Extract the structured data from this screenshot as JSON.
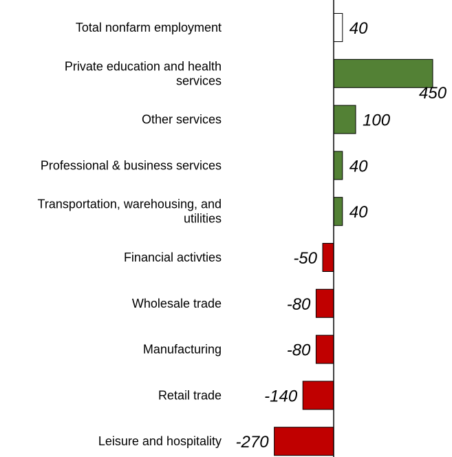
{
  "chart_data": {
    "type": "bar",
    "orientation": "horizontal",
    "title": "",
    "xlabel": "",
    "ylabel": "",
    "categories": [
      "Total nonfarm employment",
      "Private education and health services",
      "Other services",
      "Professional & business services",
      "Transportation, warehousing, and utilities",
      "Financial activties",
      "Wholesale trade",
      "Manufacturing",
      "Retail trade",
      "Leisure and hospitality"
    ],
    "category_lines": [
      [
        "Total nonfarm employment"
      ],
      [
        "Private education and health",
        "services"
      ],
      [
        "Other services"
      ],
      [
        "Professional & business services"
      ],
      [
        "Transportation, warehousing, and",
        "utilities"
      ],
      [
        "Financial activties"
      ],
      [
        "Wholesale trade"
      ],
      [
        "Manufacturing"
      ],
      [
        "Retail trade"
      ],
      [
        "Leisure and hospitality"
      ]
    ],
    "values": [
      40,
      450,
      100,
      40,
      40,
      -50,
      -80,
      -80,
      -140,
      -270
    ],
    "value_labels": [
      "40",
      "450",
      "100",
      "40",
      "40",
      "-50",
      "-80",
      "-80",
      "-140",
      "-270"
    ],
    "xlim": [
      -300,
      500
    ],
    "grid": false,
    "legend": "none",
    "colors": {
      "total": "#ffffff",
      "positive": "#538135",
      "negative": "#c00000",
      "outline": "#000000",
      "axis": "#000000"
    }
  }
}
